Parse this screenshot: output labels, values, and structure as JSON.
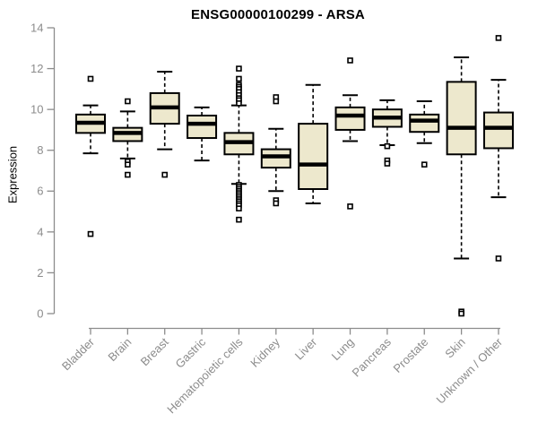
{
  "chart_data": {
    "type": "boxplot",
    "title": "ENSG00000100299 - ARSA",
    "ylabel": "Expression",
    "ylim": [
      0,
      14
    ],
    "yticks": [
      0,
      2,
      4,
      6,
      8,
      10,
      12,
      14
    ],
    "grid": false,
    "categories": [
      "Bladder",
      "Brain",
      "Breast",
      "Gastric",
      "Hematopoietic cells",
      "Kidney",
      "Liver",
      "Lung",
      "Pancreas",
      "Prostate",
      "Skin",
      "Unknown / Other"
    ],
    "boxes": [
      {
        "category": "Bladder",
        "whisker_low": 7.85,
        "q1": 8.85,
        "median": 9.35,
        "q3": 9.75,
        "whisker_high": 10.2,
        "outliers": [
          11.5,
          3.9
        ]
      },
      {
        "category": "Brain",
        "whisker_low": 7.6,
        "q1": 8.45,
        "median": 8.85,
        "q3": 9.1,
        "whisker_high": 9.9,
        "outliers": [
          10.4,
          7.45,
          7.3,
          6.8
        ]
      },
      {
        "category": "Breast",
        "whisker_low": 8.05,
        "q1": 9.3,
        "median": 10.1,
        "q3": 10.8,
        "whisker_high": 11.85,
        "outliers": [
          6.8
        ]
      },
      {
        "category": "Gastric",
        "whisker_low": 7.5,
        "q1": 8.6,
        "median": 9.3,
        "q3": 9.7,
        "whisker_high": 10.1,
        "outliers": []
      },
      {
        "category": "Hematopoietic cells",
        "whisker_low": 6.35,
        "q1": 7.8,
        "median": 8.4,
        "q3": 8.85,
        "whisker_high": 10.2,
        "outliers": [
          12.0,
          11.5,
          11.2,
          11.1,
          11.0,
          10.85,
          10.7,
          10.55,
          10.45,
          10.3,
          6.3,
          6.2,
          6.1,
          6.0,
          5.9,
          5.8,
          5.7,
          5.6,
          5.5,
          5.4,
          5.3,
          5.15,
          4.6
        ]
      },
      {
        "category": "Kidney",
        "whisker_low": 6.0,
        "q1": 7.15,
        "median": 7.7,
        "q3": 8.05,
        "whisker_high": 9.05,
        "outliers": [
          10.6,
          10.4,
          5.55,
          5.4
        ]
      },
      {
        "category": "Liver",
        "whisker_low": 5.4,
        "q1": 6.1,
        "median": 7.3,
        "q3": 9.3,
        "whisker_high": 11.2,
        "outliers": []
      },
      {
        "category": "Lung",
        "whisker_low": 8.45,
        "q1": 9.0,
        "median": 9.7,
        "q3": 10.1,
        "whisker_high": 10.7,
        "outliers": [
          12.4,
          5.25
        ]
      },
      {
        "category": "Pancreas",
        "whisker_low": 8.25,
        "q1": 9.15,
        "median": 9.6,
        "q3": 10.0,
        "whisker_high": 10.45,
        "outliers": [
          8.2,
          7.5,
          7.35
        ]
      },
      {
        "category": "Prostate",
        "whisker_low": 8.35,
        "q1": 8.9,
        "median": 9.45,
        "q3": 9.75,
        "whisker_high": 10.4,
        "outliers": [
          7.3
        ]
      },
      {
        "category": "Skin",
        "whisker_low": 2.7,
        "q1": 7.8,
        "median": 9.1,
        "q3": 11.35,
        "whisker_high": 12.55,
        "outliers": [
          0.1,
          0.0
        ]
      },
      {
        "category": "Unknown / Other",
        "whisker_low": 5.7,
        "q1": 8.1,
        "median": 9.1,
        "q3": 9.85,
        "whisker_high": 11.45,
        "outliers": [
          13.5,
          2.7
        ]
      }
    ],
    "colors": {
      "box_fill": "#EDE8CD",
      "box_border": "#000000",
      "median": "#000000",
      "whisker": "#000000",
      "outlier_stroke": "#000000",
      "outlier_fill": "#ffffff",
      "axis": "#8c8c8c",
      "tick_label": "#8c8c8c",
      "title": "#000000"
    }
  }
}
